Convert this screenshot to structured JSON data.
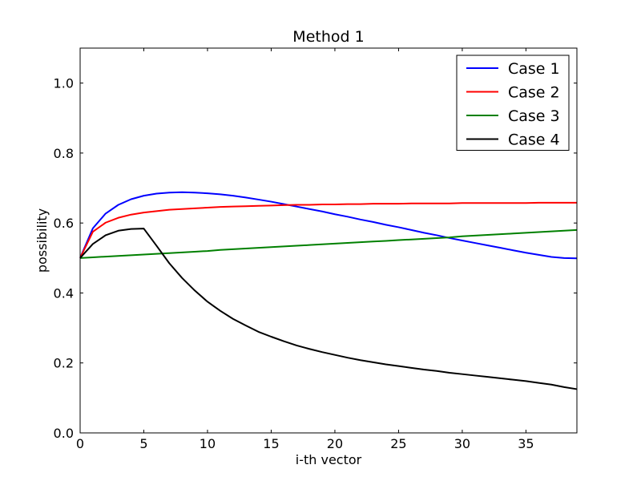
{
  "chart_data": {
    "type": "line",
    "title": "Method 1",
    "xlabel": "i-th vector",
    "ylabel": "possibility",
    "xlim": [
      0,
      39
    ],
    "ylim": [
      0.0,
      1.1
    ],
    "x_ticks": [
      0,
      5,
      10,
      15,
      20,
      25,
      30,
      35
    ],
    "x_tick_labels": [
      "0",
      "5",
      "10",
      "15",
      "20",
      "25",
      "30",
      "35"
    ],
    "y_ticks": [
      0.0,
      0.2,
      0.4,
      0.6,
      0.8,
      1.0
    ],
    "y_tick_labels": [
      "0.0",
      "0.2",
      "0.4",
      "0.6",
      "0.8",
      "1.0"
    ],
    "grid": false,
    "legend_position": "top-right",
    "x": [
      0,
      1,
      2,
      3,
      4,
      5,
      6,
      7,
      8,
      9,
      10,
      11,
      12,
      13,
      14,
      15,
      16,
      17,
      18,
      19,
      20,
      21,
      22,
      23,
      24,
      25,
      26,
      27,
      28,
      29,
      30,
      31,
      32,
      33,
      34,
      35,
      36,
      37,
      38,
      39
    ],
    "series": [
      {
        "name": "Case 1",
        "color": "#0000ff",
        "values": [
          0.5,
          0.585,
          0.627,
          0.652,
          0.668,
          0.678,
          0.684,
          0.687,
          0.688,
          0.687,
          0.685,
          0.682,
          0.678,
          0.673,
          0.667,
          0.661,
          0.654,
          0.647,
          0.64,
          0.633,
          0.625,
          0.618,
          0.61,
          0.603,
          0.595,
          0.588,
          0.58,
          0.572,
          0.565,
          0.557,
          0.55,
          0.543,
          0.536,
          0.529,
          0.522,
          0.515,
          0.509,
          0.503,
          0.5,
          0.499
        ]
      },
      {
        "name": "Case 2",
        "color": "#ff0000",
        "values": [
          0.5,
          0.575,
          0.601,
          0.615,
          0.624,
          0.63,
          0.634,
          0.638,
          0.64,
          0.642,
          0.644,
          0.646,
          0.647,
          0.648,
          0.649,
          0.65,
          0.651,
          0.652,
          0.652,
          0.653,
          0.653,
          0.654,
          0.654,
          0.655,
          0.655,
          0.655,
          0.656,
          0.656,
          0.656,
          0.656,
          0.657,
          0.657,
          0.657,
          0.657,
          0.657,
          0.657,
          0.658,
          0.658,
          0.658,
          0.658
        ]
      },
      {
        "name": "Case 3",
        "color": "#008000",
        "values": [
          0.5,
          0.502,
          0.504,
          0.506,
          0.508,
          0.51,
          0.512,
          0.514,
          0.516,
          0.518,
          0.52,
          0.523,
          0.525,
          0.527,
          0.529,
          0.531,
          0.533,
          0.535,
          0.537,
          0.539,
          0.541,
          0.543,
          0.545,
          0.547,
          0.549,
          0.551,
          0.553,
          0.555,
          0.557,
          0.559,
          0.562,
          0.564,
          0.566,
          0.568,
          0.57,
          0.572,
          0.574,
          0.576,
          0.578,
          0.58
        ]
      },
      {
        "name": "Case 4",
        "color": "#000000",
        "values": [
          0.5,
          0.54,
          0.565,
          0.578,
          0.583,
          0.584,
          0.535,
          0.485,
          0.443,
          0.407,
          0.375,
          0.349,
          0.326,
          0.307,
          0.289,
          0.275,
          0.262,
          0.25,
          0.24,
          0.231,
          0.223,
          0.215,
          0.208,
          0.202,
          0.196,
          0.191,
          0.186,
          0.181,
          0.177,
          0.172,
          0.168,
          0.164,
          0.16,
          0.156,
          0.152,
          0.148,
          0.143,
          0.138,
          0.131,
          0.125
        ]
      }
    ]
  }
}
